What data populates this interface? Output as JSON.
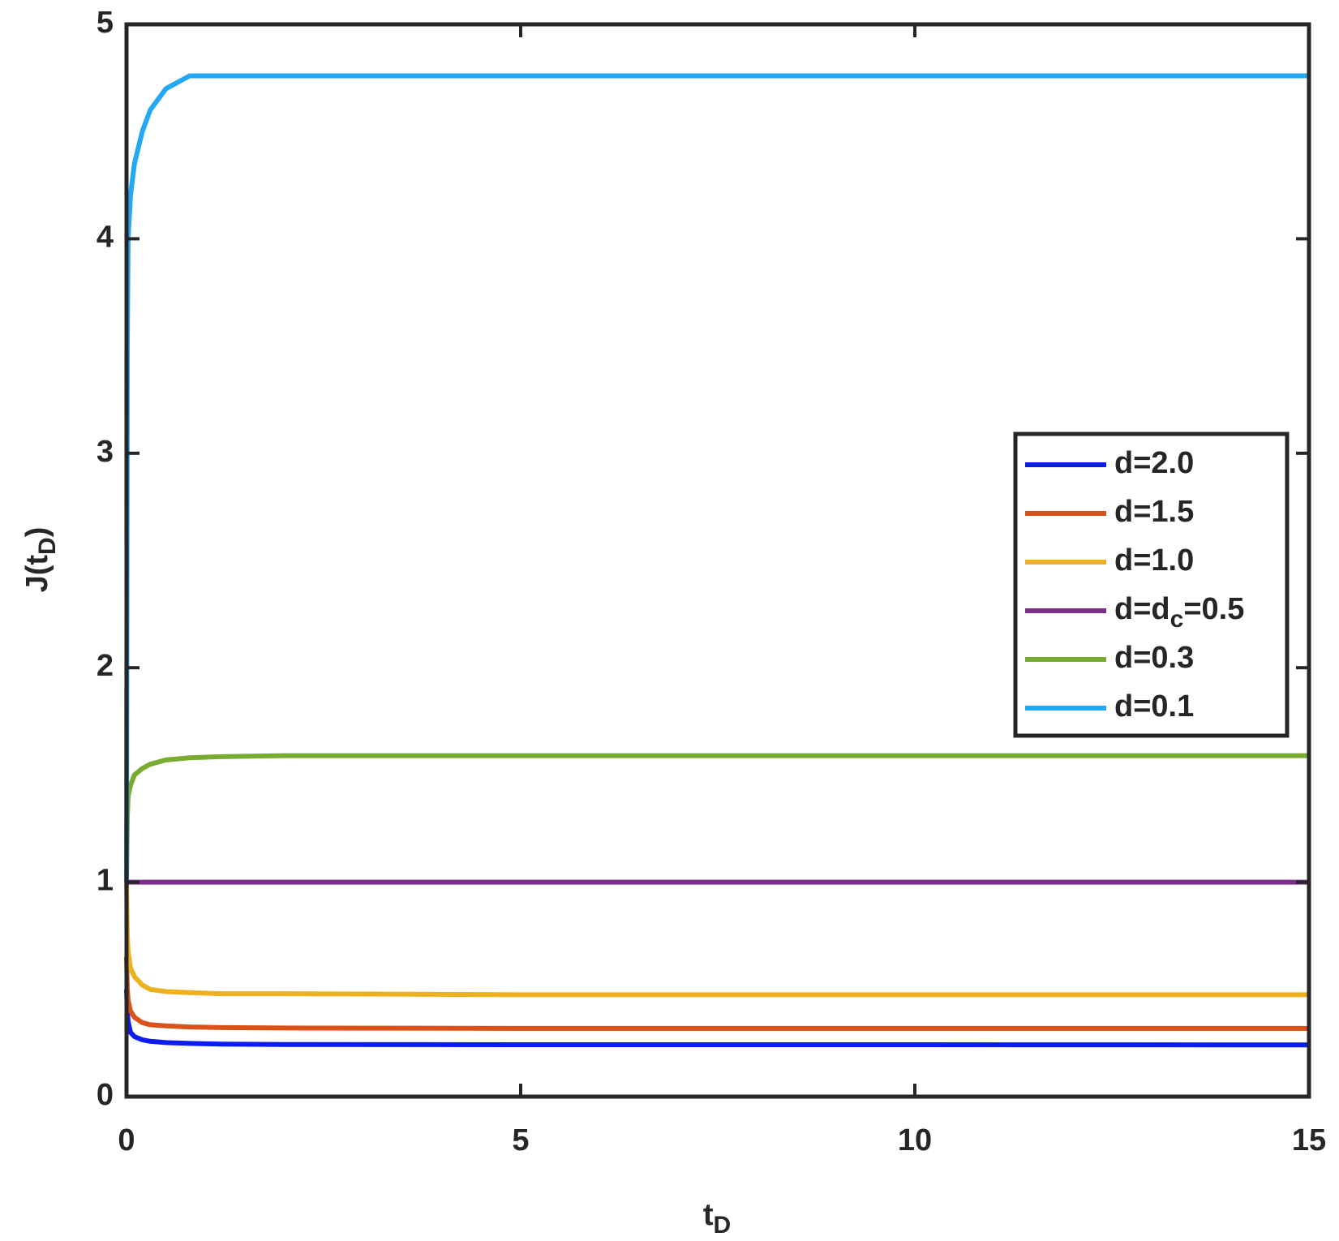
{
  "chart_data": {
    "type": "line",
    "xlabel": "t_D",
    "ylabel": "J(t_D)",
    "x": [
      0,
      0.01,
      0.02,
      0.05,
      0.1,
      0.2,
      0.3,
      0.5,
      0.8,
      1.2,
      2,
      5,
      10,
      15
    ],
    "series": [
      {
        "name": "d=2.0",
        "color": "#0a1cf0",
        "values": [
          0.5,
          0.4,
          0.35,
          0.3,
          0.28,
          0.265,
          0.258,
          0.252,
          0.248,
          0.245,
          0.243,
          0.242,
          0.242,
          0.241
        ]
      },
      {
        "name": "d=1.5",
        "color": "#d95319",
        "values": [
          0.65,
          0.5,
          0.45,
          0.4,
          0.37,
          0.345,
          0.335,
          0.33,
          0.325,
          0.322,
          0.32,
          0.318,
          0.318,
          0.318
        ]
      },
      {
        "name": "d=1.0",
        "color": "#edb120",
        "values": [
          1,
          0.75,
          0.68,
          0.6,
          0.56,
          0.52,
          0.5,
          0.49,
          0.485,
          0.48,
          0.48,
          0.475,
          0.475,
          0.475
        ]
      },
      {
        "name": "d=d_c=0.5",
        "color": "#7e2f8e",
        "values": [
          1,
          1,
          1,
          1,
          1,
          1,
          1,
          1,
          1,
          1,
          1,
          1,
          1,
          1
        ]
      },
      {
        "name": "d=0.3",
        "color": "#77ac30",
        "values": [
          1,
          1.3,
          1.4,
          1.45,
          1.5,
          1.53,
          1.55,
          1.57,
          1.58,
          1.585,
          1.59,
          1.59,
          1.59,
          1.59
        ]
      },
      {
        "name": "d=0.1",
        "color": "#22a8f4",
        "values": [
          1,
          3.5,
          4.0,
          4.2,
          4.35,
          4.5,
          4.6,
          4.7,
          4.76,
          4.76,
          4.76,
          4.76,
          4.76,
          4.76
        ]
      }
    ],
    "xlim": [
      0,
      15
    ],
    "xticks": [
      0,
      5,
      10,
      15
    ],
    "ylim": [
      0,
      5
    ],
    "yticks": [
      0,
      1,
      2,
      3,
      4,
      5
    ],
    "grid": false,
    "legend": "east"
  }
}
